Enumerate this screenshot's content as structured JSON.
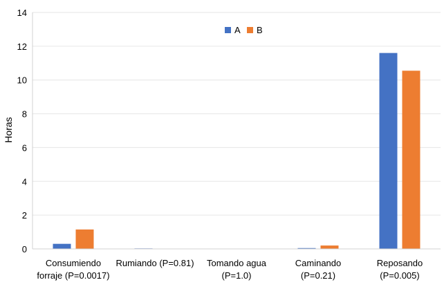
{
  "chart_data": {
    "type": "bar",
    "title": "",
    "ylabel": "Horas",
    "xlabel": "",
    "ylim": [
      0,
      14
    ],
    "yticks": [
      0,
      2,
      4,
      6,
      8,
      10,
      12,
      14
    ],
    "grid": true,
    "legend_position": "top-center",
    "categories": [
      [
        "Consumiendo",
        "forraje (P=0.0017)"
      ],
      [
        "Rumiando (P=0.81)"
      ],
      [
        "Tomando agua",
        "(P=1.0)"
      ],
      [
        "Caminando",
        "(P=0.21)"
      ],
      [
        "Reposando",
        "(P=0.005)"
      ]
    ],
    "series": [
      {
        "name": "A",
        "color": "#4472C4",
        "values": [
          0.3,
          0.03,
          0.0,
          0.05,
          11.6
        ]
      },
      {
        "name": "B",
        "color": "#ED7D31",
        "values": [
          1.15,
          0.02,
          0.0,
          0.2,
          10.55
        ]
      }
    ]
  }
}
